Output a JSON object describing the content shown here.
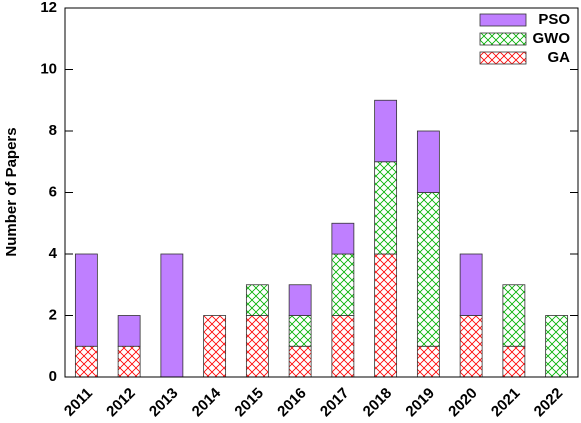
{
  "chart_data": {
    "type": "stacked_bar",
    "y_label": "Number of Papers",
    "categories": [
      "2011",
      "2012",
      "2013",
      "2014",
      "2015",
      "2016",
      "2017",
      "2018",
      "2019",
      "2020",
      "2021",
      "2022"
    ],
    "series": [
      {
        "name": "GA",
        "color": "#ff0000",
        "fill_style": "crosshatch",
        "values": [
          1,
          1,
          0,
          2,
          2,
          1,
          2,
          4,
          1,
          2,
          1,
          0
        ]
      },
      {
        "name": "GWO",
        "color": "#00b000",
        "fill_style": "crosshatch",
        "values": [
          0,
          0,
          0,
          0,
          1,
          1,
          2,
          3,
          5,
          0,
          2,
          2
        ]
      },
      {
        "name": "PSO",
        "color": "#bf7fff",
        "fill_style": "solid",
        "values": [
          3,
          1,
          4,
          0,
          0,
          1,
          1,
          2,
          2,
          2,
          0,
          0
        ]
      }
    ],
    "ylim": [
      0,
      12
    ],
    "yticks": [
      0,
      2,
      4,
      6,
      8,
      10,
      12
    ],
    "legend": "top-right"
  }
}
